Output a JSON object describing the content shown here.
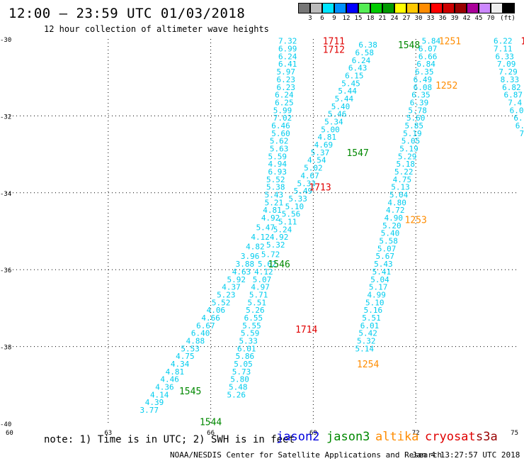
{
  "header": {
    "title": "12:00 – 23:59 UTC 01/03/2018",
    "subtitle": "12 hour collection of altimeter wave heights"
  },
  "colorbar": {
    "unit": "(ft)",
    "stops": [
      {
        "label": "",
        "color": "#777777"
      },
      {
        "label": "3",
        "color": "#bbbbbb"
      },
      {
        "label": "6",
        "color": "#00e5ff"
      },
      {
        "label": "9",
        "color": "#0090ff"
      },
      {
        "label": "12",
        "color": "#0000ff"
      },
      {
        "label": "15",
        "color": "#55ee55"
      },
      {
        "label": "18",
        "color": "#00cc00"
      },
      {
        "label": "21",
        "color": "#009900"
      },
      {
        "label": "24",
        "color": "#ffff00"
      },
      {
        "label": "27",
        "color": "#ffc800"
      },
      {
        "label": "30",
        "color": "#ff8c00"
      },
      {
        "label": "33",
        "color": "#ff0000"
      },
      {
        "label": "36",
        "color": "#cc0000"
      },
      {
        "label": "39",
        "color": "#990000"
      },
      {
        "label": "42",
        "color": "#aa0099"
      },
      {
        "label": "45",
        "color": "#cc88ff"
      },
      {
        "label": "70",
        "color": "#eeeeee"
      },
      {
        "label": "",
        "color": "#000000"
      }
    ]
  },
  "chart_data": {
    "type": "scatter",
    "xlim": [
      60,
      75
    ],
    "ylim": [
      -40,
      -30
    ],
    "xticks": [
      "60",
      "63",
      "66",
      "69",
      "72",
      "75"
    ],
    "yticks": [
      "-30",
      "-32",
      "-34",
      "-36",
      "-38",
      "-40"
    ],
    "grid": true,
    "pass_labels": [
      {
        "text": "1711",
        "x": 69.6,
        "y": -30.05,
        "color": "#e00000"
      },
      {
        "text": "1712",
        "x": 69.6,
        "y": -30.27,
        "color": "#e00000"
      },
      {
        "text": "1713",
        "x": 69.2,
        "y": -33.85,
        "color": "#e00000"
      },
      {
        "text": "1714",
        "x": 68.8,
        "y": -37.55,
        "color": "#e00000"
      },
      {
        "text": "1548",
        "x": 71.8,
        "y": -30.15,
        "color": "#008800"
      },
      {
        "text": "1547",
        "x": 70.3,
        "y": -32.95,
        "color": "#008800"
      },
      {
        "text": "1546",
        "x": 68.0,
        "y": -35.85,
        "color": "#008800"
      },
      {
        "text": "1545",
        "x": 65.4,
        "y": -39.15,
        "color": "#008800"
      },
      {
        "text": "1544",
        "x": 66.0,
        "y": -39.95,
        "color": "#008800"
      },
      {
        "text": "1251",
        "x": 73.0,
        "y": -30.05,
        "color": "#ff8c00"
      },
      {
        "text": "1252",
        "x": 72.9,
        "y": -31.2,
        "color": "#ff8c00"
      },
      {
        "text": "1253",
        "x": 72.0,
        "y": -34.7,
        "color": "#ff8c00"
      },
      {
        "text": "1254",
        "x": 70.6,
        "y": -38.45,
        "color": "#ff8c00"
      },
      {
        "text": "1",
        "x": 75.15,
        "y": -30.05,
        "color": "#e00000"
      }
    ],
    "series": [
      {
        "color": "#00ccee",
        "points": [
          {
            "x": 68.25,
            "y": -30.05,
            "v": "7.32"
          },
          {
            "x": 68.25,
            "y": -30.25,
            "v": "6.99"
          },
          {
            "x": 68.25,
            "y": -30.45,
            "v": "6.24"
          },
          {
            "x": 68.25,
            "y": -30.65,
            "v": "6.41"
          },
          {
            "x": 68.2,
            "y": -30.85,
            "v": "5.97"
          },
          {
            "x": 68.2,
            "y": -31.05,
            "v": "6.23"
          },
          {
            "x": 68.2,
            "y": -31.25,
            "v": "6.23"
          },
          {
            "x": 68.15,
            "y": -31.45,
            "v": "6.24"
          },
          {
            "x": 68.15,
            "y": -31.65,
            "v": "6.25"
          },
          {
            "x": 68.1,
            "y": -31.85,
            "v": "5.99"
          },
          {
            "x": 68.1,
            "y": -32.05,
            "v": "7.02"
          },
          {
            "x": 68.05,
            "y": -32.25,
            "v": "6.46"
          },
          {
            "x": 68.05,
            "y": -32.45,
            "v": "5.60"
          },
          {
            "x": 68.0,
            "y": -32.65,
            "v": "5.62"
          },
          {
            "x": 68.0,
            "y": -32.85,
            "v": "5.63"
          },
          {
            "x": 67.95,
            "y": -33.05,
            "v": "5.59"
          },
          {
            "x": 67.95,
            "y": -33.25,
            "v": "4.94"
          },
          {
            "x": 67.95,
            "y": -33.45,
            "v": "6.93"
          },
          {
            "x": 67.9,
            "y": -33.65,
            "v": "5.52"
          },
          {
            "x": 67.9,
            "y": -33.85,
            "v": "5.38"
          },
          {
            "x": 67.85,
            "y": -34.05,
            "v": "5.43"
          },
          {
            "x": 67.85,
            "y": -34.25,
            "v": "5.21"
          },
          {
            "x": 67.8,
            "y": -34.45,
            "v": "4.81"
          },
          {
            "x": 67.75,
            "y": -34.65,
            "v": "4.92"
          },
          {
            "x": 67.6,
            "y": -34.9,
            "v": "5.47"
          },
          {
            "x": 67.45,
            "y": -35.15,
            "v": "4.12"
          },
          {
            "x": 67.3,
            "y": -35.4,
            "v": "4.82"
          },
          {
            "x": 67.15,
            "y": -35.65,
            "v": "3.96"
          },
          {
            "x": 67.0,
            "y": -35.85,
            "v": "3.88"
          },
          {
            "x": 66.9,
            "y": -36.05,
            "v": "4.63"
          },
          {
            "x": 66.75,
            "y": -36.25,
            "v": "5.92"
          },
          {
            "x": 66.6,
            "y": -36.45,
            "v": "4.37"
          },
          {
            "x": 66.45,
            "y": -36.65,
            "v": "5.23"
          },
          {
            "x": 66.3,
            "y": -36.85,
            "v": "5.52"
          },
          {
            "x": 66.15,
            "y": -37.05,
            "v": "4.06"
          },
          {
            "x": 66.0,
            "y": -37.25,
            "v": "4.66"
          },
          {
            "x": 65.85,
            "y": -37.45,
            "v": "6.67"
          },
          {
            "x": 65.7,
            "y": -37.65,
            "v": "6.40"
          },
          {
            "x": 65.55,
            "y": -37.85,
            "v": "4.88"
          },
          {
            "x": 65.4,
            "y": -38.05,
            "v": "5.53"
          },
          {
            "x": 65.25,
            "y": -38.25,
            "v": "4.75"
          },
          {
            "x": 65.1,
            "y": -38.45,
            "v": "4.34"
          },
          {
            "x": 64.95,
            "y": -38.65,
            "v": "4.81"
          },
          {
            "x": 64.8,
            "y": -38.85,
            "v": "4.46"
          },
          {
            "x": 64.65,
            "y": -39.05,
            "v": "4.36"
          },
          {
            "x": 64.5,
            "y": -39.25,
            "v": "4.14"
          },
          {
            "x": 64.35,
            "y": -39.45,
            "v": "4.39"
          },
          {
            "x": 64.2,
            "y": -39.65,
            "v": "3.77"
          }
        ]
      },
      {
        "color": "#00ccee",
        "points": [
          {
            "x": 70.6,
            "y": -30.15,
            "v": "6.38"
          },
          {
            "x": 70.5,
            "y": -30.35,
            "v": "6.58"
          },
          {
            "x": 70.4,
            "y": -30.55,
            "v": "6.24"
          },
          {
            "x": 70.3,
            "y": -30.75,
            "v": "6.43"
          },
          {
            "x": 70.2,
            "y": -30.95,
            "v": "6.15"
          },
          {
            "x": 70.1,
            "y": -31.15,
            "v": "5.45"
          },
          {
            "x": 70.0,
            "y": -31.35,
            "v": "5.44"
          },
          {
            "x": 69.9,
            "y": -31.55,
            "v": "5.44"
          },
          {
            "x": 69.8,
            "y": -31.75,
            "v": "5.40"
          },
          {
            "x": 69.7,
            "y": -31.95,
            "v": "5.46"
          },
          {
            "x": 69.6,
            "y": -32.15,
            "v": "5.34"
          },
          {
            "x": 69.5,
            "y": -32.35,
            "v": "5.00"
          },
          {
            "x": 69.4,
            "y": -32.55,
            "v": "4.81"
          },
          {
            "x": 69.3,
            "y": -32.75,
            "v": "4.69"
          },
          {
            "x": 69.2,
            "y": -32.95,
            "v": "5.37"
          },
          {
            "x": 69.1,
            "y": -33.15,
            "v": "4.54"
          },
          {
            "x": 69.0,
            "y": -33.35,
            "v": "5.02"
          },
          {
            "x": 68.9,
            "y": -33.55,
            "v": "4.67"
          },
          {
            "x": 68.8,
            "y": -33.75,
            "v": "5.33"
          },
          {
            "x": 68.7,
            "y": -33.95,
            "v": "5.49"
          },
          {
            "x": 68.55,
            "y": -34.15,
            "v": "5.33"
          },
          {
            "x": 68.45,
            "y": -34.35,
            "v": "5.10"
          },
          {
            "x": 68.35,
            "y": -34.55,
            "v": "5.56"
          },
          {
            "x": 68.25,
            "y": -34.75,
            "v": "5.11"
          },
          {
            "x": 68.1,
            "y": -34.95,
            "v": "5.24"
          },
          {
            "x": 68.0,
            "y": -35.15,
            "v": "4.92"
          },
          {
            "x": 67.9,
            "y": -35.35,
            "v": "5.32"
          },
          {
            "x": 67.75,
            "y": -35.6,
            "v": "5.72"
          },
          {
            "x": 67.65,
            "y": -35.85,
            "v": "5.62"
          },
          {
            "x": 67.55,
            "y": -36.05,
            "v": "4.12"
          },
          {
            "x": 67.5,
            "y": -36.25,
            "v": "5.07"
          },
          {
            "x": 67.45,
            "y": -36.45,
            "v": "4.97"
          },
          {
            "x": 67.4,
            "y": -36.65,
            "v": "5.71"
          },
          {
            "x": 67.35,
            "y": -36.85,
            "v": "5.51"
          },
          {
            "x": 67.3,
            "y": -37.05,
            "v": "5.26"
          },
          {
            "x": 67.25,
            "y": -37.25,
            "v": "6.55"
          },
          {
            "x": 67.2,
            "y": -37.45,
            "v": "5.55"
          },
          {
            "x": 67.15,
            "y": -37.65,
            "v": "5.59"
          },
          {
            "x": 67.1,
            "y": -37.85,
            "v": "5.33"
          },
          {
            "x": 67.05,
            "y": -38.05,
            "v": "6.01"
          },
          {
            "x": 67.0,
            "y": -38.25,
            "v": "5.86"
          },
          {
            "x": 66.95,
            "y": -38.45,
            "v": "5.05"
          },
          {
            "x": 66.9,
            "y": -38.65,
            "v": "5.73"
          },
          {
            "x": 66.85,
            "y": -38.85,
            "v": "5.80"
          },
          {
            "x": 66.8,
            "y": -39.05,
            "v": "5.48"
          },
          {
            "x": 66.75,
            "y": -39.25,
            "v": "5.26"
          }
        ]
      },
      {
        "color": "#00ccee",
        "points": [
          {
            "x": 72.45,
            "y": -30.05,
            "v": "5.84"
          },
          {
            "x": 72.35,
            "y": -30.25,
            "v": "6.07"
          },
          {
            "x": 72.35,
            "y": -30.45,
            "v": "6.66"
          },
          {
            "x": 72.3,
            "y": -30.65,
            "v": "6.84"
          },
          {
            "x": 72.25,
            "y": -30.85,
            "v": "6.35"
          },
          {
            "x": 72.2,
            "y": -31.05,
            "v": "6.49"
          },
          {
            "x": 72.2,
            "y": -31.25,
            "v": "6.08"
          },
          {
            "x": 72.15,
            "y": -31.45,
            "v": "6.35"
          },
          {
            "x": 72.1,
            "y": -31.65,
            "v": "6.39"
          },
          {
            "x": 72.05,
            "y": -31.85,
            "v": "5.78"
          },
          {
            "x": 72.0,
            "y": -32.05,
            "v": "5.60"
          },
          {
            "x": 71.95,
            "y": -32.25,
            "v": "5.85"
          },
          {
            "x": 71.9,
            "y": -32.45,
            "v": "5.19"
          },
          {
            "x": 71.85,
            "y": -32.65,
            "v": "5.05"
          },
          {
            "x": 71.8,
            "y": -32.85,
            "v": "5.19"
          },
          {
            "x": 71.75,
            "y": -33.05,
            "v": "5.29"
          },
          {
            "x": 71.7,
            "y": -33.25,
            "v": "5.18"
          },
          {
            "x": 71.65,
            "y": -33.45,
            "v": "5.22"
          },
          {
            "x": 71.6,
            "y": -33.65,
            "v": "4.75"
          },
          {
            "x": 71.55,
            "y": -33.85,
            "v": "5.13"
          },
          {
            "x": 71.5,
            "y": -34.05,
            "v": "5.04"
          },
          {
            "x": 71.45,
            "y": -34.25,
            "v": "4.80"
          },
          {
            "x": 71.4,
            "y": -34.45,
            "v": "4.72"
          },
          {
            "x": 71.35,
            "y": -34.65,
            "v": "4.90"
          },
          {
            "x": 71.3,
            "y": -34.85,
            "v": "5.20"
          },
          {
            "x": 71.25,
            "y": -35.05,
            "v": "5.40"
          },
          {
            "x": 71.2,
            "y": -35.25,
            "v": "5.58"
          },
          {
            "x": 71.15,
            "y": -35.45,
            "v": "5.07"
          },
          {
            "x": 71.1,
            "y": -35.65,
            "v": "5.67"
          },
          {
            "x": 71.05,
            "y": -35.85,
            "v": "5.43"
          },
          {
            "x": 71.0,
            "y": -36.05,
            "v": "5.41"
          },
          {
            "x": 70.95,
            "y": -36.25,
            "v": "5.04"
          },
          {
            "x": 70.9,
            "y": -36.45,
            "v": "5.17"
          },
          {
            "x": 70.85,
            "y": -36.65,
            "v": "4.99"
          },
          {
            "x": 70.8,
            "y": -36.85,
            "v": "5.10"
          },
          {
            "x": 70.75,
            "y": -37.05,
            "v": "5.16"
          },
          {
            "x": 70.7,
            "y": -37.25,
            "v": "5.51"
          },
          {
            "x": 70.65,
            "y": -37.45,
            "v": "6.01"
          },
          {
            "x": 70.6,
            "y": -37.65,
            "v": "5.42"
          },
          {
            "x": 70.55,
            "y": -37.85,
            "v": "5.32"
          },
          {
            "x": 70.5,
            "y": -38.05,
            "v": "5.14"
          }
        ]
      },
      {
        "color": "#00ccee",
        "points": [
          {
            "x": 74.55,
            "y": -30.05,
            "v": "6.22"
          },
          {
            "x": 74.55,
            "y": -30.25,
            "v": "7.11"
          },
          {
            "x": 74.6,
            "y": -30.45,
            "v": "6.33"
          },
          {
            "x": 74.65,
            "y": -30.65,
            "v": "7.09"
          },
          {
            "x": 74.7,
            "y": -30.85,
            "v": "7.29"
          },
          {
            "x": 74.75,
            "y": -31.05,
            "v": "8.33"
          },
          {
            "x": 74.8,
            "y": -31.25,
            "v": "6.82"
          },
          {
            "x": 74.85,
            "y": -31.45,
            "v": "6.87"
          },
          {
            "x": 74.9,
            "y": -31.65,
            "v": "7.4"
          },
          {
            "x": 74.95,
            "y": -31.85,
            "v": "6.0"
          },
          {
            "x": 75.0,
            "y": -32.05,
            "v": "6."
          },
          {
            "x": 75.05,
            "y": -32.25,
            "v": "6."
          },
          {
            "x": 75.1,
            "y": -32.45,
            "v": "7"
          }
        ]
      }
    ]
  },
  "footer": {
    "note": "note: 1) Time is in UTC; 2) SWH is in feet",
    "legend": [
      {
        "label": "jason2",
        "color": "#0000dd"
      },
      {
        "label": "jason3",
        "color": "#008800"
      },
      {
        "label": "altika",
        "color": "#ff8c00"
      },
      {
        "label": "cryosat",
        "color": "#e00000"
      },
      {
        "label": "s3a",
        "color": "#990000"
      }
    ],
    "credit": "NOAA/NESDIS Center for Satellite Applications and Research",
    "timestamp": "Jan  4 13:27:57 UTC 2018"
  }
}
